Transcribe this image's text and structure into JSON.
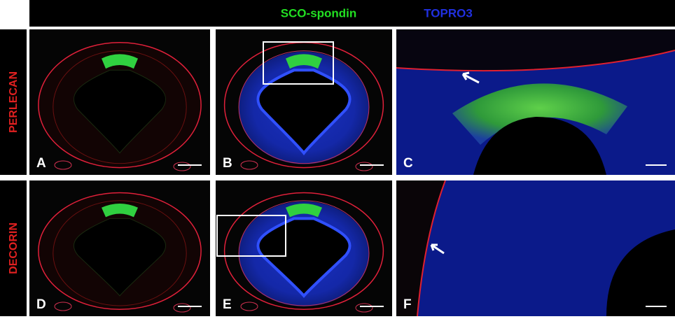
{
  "header": {
    "labels": [
      "SCO-spondin",
      "TOPRO3"
    ]
  },
  "rows": [
    "PERLECAN",
    "DECORIN"
  ],
  "panels": [
    "A",
    "B",
    "C",
    "D",
    "E",
    "F"
  ]
}
